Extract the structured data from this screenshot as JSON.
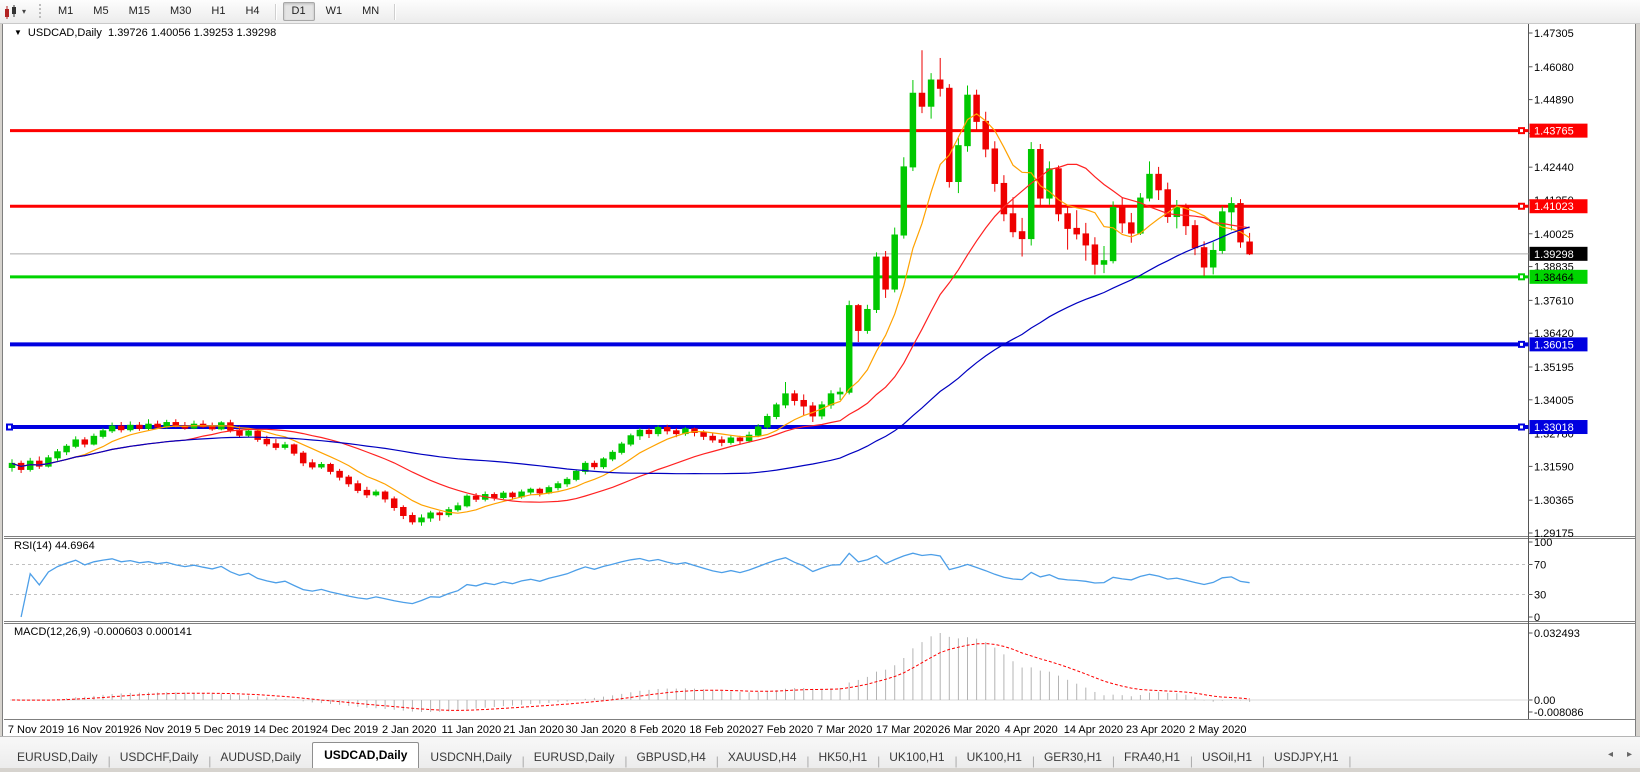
{
  "toolbar": {
    "chart_type_icon": "candlestick-chart-icon",
    "dropdown_caret": "▾",
    "timeframes": [
      {
        "label": "M1",
        "active": false
      },
      {
        "label": "M5",
        "active": false
      },
      {
        "label": "M15",
        "active": false
      },
      {
        "label": "M30",
        "active": false
      },
      {
        "label": "H1",
        "active": false
      },
      {
        "label": "H4",
        "active": false
      },
      {
        "label": "D1",
        "active": true
      },
      {
        "label": "W1",
        "active": false
      },
      {
        "label": "MN",
        "active": false
      }
    ]
  },
  "chart": {
    "title_symbol": "USDCAD,Daily",
    "title_ohlc": "1.39726 1.40056 1.39253 1.39298",
    "dropdown_glyph": "▼"
  },
  "rsi_panel": {
    "label": "RSI(14) 44.6964"
  },
  "macd_panel": {
    "label": "MACD(12,26,9) -0.000603 0.000141"
  },
  "tabs": {
    "items": [
      {
        "label": "EURUSD,Daily",
        "active": false
      },
      {
        "label": "USDCHF,Daily",
        "active": false
      },
      {
        "label": "AUDUSD,Daily",
        "active": false
      },
      {
        "label": "USDCAD,Daily",
        "active": true
      },
      {
        "label": "USDCNH,Daily",
        "active": false
      },
      {
        "label": "EURUSD,Daily",
        "active": false
      },
      {
        "label": "GBPUSD,H4",
        "active": false
      },
      {
        "label": "XAUUSD,H4",
        "active": false
      },
      {
        "label": "HK50,H1",
        "active": false
      },
      {
        "label": "UK100,H1",
        "active": false
      },
      {
        "label": "UK100,H1",
        "active": false
      },
      {
        "label": "GER30,H1",
        "active": false
      },
      {
        "label": "FRA40,H1",
        "active": false
      },
      {
        "label": "USOil,H1",
        "active": false
      },
      {
        "label": "USDJPY,H1",
        "active": false
      }
    ],
    "scroll_left": "◂",
    "scroll_right": "▸"
  },
  "chart_data": {
    "type": "candlestick+indicators",
    "symbol": "USDCAD",
    "timeframe": "Daily",
    "current_bar": {
      "open": 1.39726,
      "high": 1.40056,
      "low": 1.39253,
      "close": 1.39298
    },
    "price_axis": {
      "top": 1.47305,
      "bottom": 1.29175,
      "ticks": [
        "1.47305",
        "1.46080",
        "1.44890",
        "1.43665",
        "1.42440",
        "1.41250",
        "1.40025",
        "1.38835",
        "1.37610",
        "1.36420",
        "1.35195",
        "1.34005",
        "1.32780",
        "1.31590",
        "1.30365",
        "1.29175"
      ]
    },
    "x_labels": [
      "7 Nov 2019",
      "16 Nov 2019",
      "26 Nov 2019",
      "5 Dec 2019",
      "14 Dec 2019",
      "24 Dec 2019",
      "2 Jan 2020",
      "11 Jan 2020",
      "21 Jan 2020",
      "30 Jan 2020",
      "8 Feb 2020",
      "18 Feb 2020",
      "27 Feb 2020",
      "7 Mar 2020",
      "17 Mar 2020",
      "26 Mar 2020",
      "4 Apr 2020",
      "14 Apr 2020",
      "23 Apr 2020",
      "2 May 2020"
    ],
    "hlines": [
      {
        "price": 1.43765,
        "label": "1.43765",
        "color": "#fe0000",
        "text_color": "#ffffff",
        "width": 3
      },
      {
        "price": 1.41023,
        "label": "1.41023",
        "color": "#fe0000",
        "text_color": "#ffffff",
        "width": 3
      },
      {
        "price": 1.38464,
        "label": "1.38464",
        "color": "#00d400",
        "text_color": "#000000",
        "width": 3
      },
      {
        "price": 1.36015,
        "label": "1.36015",
        "color": "#0000e0",
        "text_color": "#ffffff",
        "width": 4
      },
      {
        "price": 1.33018,
        "label": "1.33018",
        "color": "#0000e0",
        "text_color": "#ffffff",
        "width": 4
      }
    ],
    "current_price_line": {
      "price": 1.39298,
      "label": "1.39298",
      "color": "#aaaaaa",
      "tag_bg": "#000000",
      "tag_text": "#ffffff"
    },
    "colors": {
      "bull": "#00c800",
      "bear": "#ee0000",
      "ma_fast": "#ffa200",
      "ma_mid": "#ff2222",
      "ma_slow": "#0000c0",
      "rsi": "#4d9fe8",
      "rsi_levels": "#c0c0c0",
      "macd_bar": "#b4b4b4",
      "macd_signal": "#ff0000",
      "axis_text": "#000000"
    },
    "moving_averages": [
      {
        "period": 8,
        "color_key": "ma_fast"
      },
      {
        "period": 20,
        "color_key": "ma_mid"
      },
      {
        "period": 50,
        "color_key": "ma_slow"
      }
    ],
    "rsi": {
      "period": 14,
      "current": 44.6964,
      "levels": [
        30,
        70
      ],
      "axis_labels": [
        "100",
        "70",
        "30",
        "0"
      ]
    },
    "macd": {
      "fast": 12,
      "slow": 26,
      "signal": 9,
      "current_main": -0.000603,
      "current_signal": 0.000141,
      "axis_labels": [
        "0.032493",
        "0.00",
        "-0.008086"
      ],
      "axis_max": 0.032493,
      "axis_min": -0.008086
    },
    "candles": [
      [
        1.3155,
        1.3185,
        1.314,
        1.317
      ],
      [
        1.317,
        1.318,
        1.3135,
        1.3148
      ],
      [
        1.3148,
        1.319,
        1.314,
        1.3178
      ],
      [
        1.3178,
        1.3195,
        1.315,
        1.316
      ],
      [
        1.316,
        1.32,
        1.3155,
        1.319
      ],
      [
        1.319,
        1.3222,
        1.318,
        1.3212
      ],
      [
        1.3212,
        1.324,
        1.32,
        1.3232
      ],
      [
        1.3232,
        1.3268,
        1.3225,
        1.3255
      ],
      [
        1.3255,
        1.3265,
        1.3228,
        1.324
      ],
      [
        1.324,
        1.3278,
        1.3235,
        1.3268
      ],
      [
        1.3268,
        1.3298,
        1.326,
        1.3288
      ],
      [
        1.3288,
        1.3318,
        1.328,
        1.3305
      ],
      [
        1.3305,
        1.332,
        1.3282,
        1.3292
      ],
      [
        1.3292,
        1.3322,
        1.3285,
        1.3308
      ],
      [
        1.3308,
        1.332,
        1.3288,
        1.3297
      ],
      [
        1.3297,
        1.333,
        1.329,
        1.3312
      ],
      [
        1.3312,
        1.3325,
        1.3295,
        1.3302
      ],
      [
        1.3302,
        1.3328,
        1.3296,
        1.3318
      ],
      [
        1.3318,
        1.333,
        1.33,
        1.3306
      ],
      [
        1.3306,
        1.332,
        1.3292,
        1.3298
      ],
      [
        1.3298,
        1.3325,
        1.3294,
        1.3312
      ],
      [
        1.3312,
        1.3326,
        1.3298,
        1.3303
      ],
      [
        1.3303,
        1.3318,
        1.3288,
        1.3295
      ],
      [
        1.3295,
        1.3323,
        1.329,
        1.3317
      ],
      [
        1.3317,
        1.3328,
        1.3282,
        1.3291
      ],
      [
        1.3291,
        1.3305,
        1.3262,
        1.3272
      ],
      [
        1.3272,
        1.3295,
        1.3265,
        1.3287
      ],
      [
        1.3287,
        1.3292,
        1.3248,
        1.3257
      ],
      [
        1.3257,
        1.327,
        1.3232,
        1.3241
      ],
      [
        1.3241,
        1.3258,
        1.3218,
        1.3228
      ],
      [
        1.3228,
        1.3248,
        1.322,
        1.3237
      ],
      [
        1.3237,
        1.3242,
        1.3198,
        1.3207
      ],
      [
        1.3207,
        1.3215,
        1.316,
        1.3172
      ],
      [
        1.3172,
        1.3185,
        1.3148,
        1.3157
      ],
      [
        1.3157,
        1.3175,
        1.315,
        1.3166
      ],
      [
        1.3166,
        1.3172,
        1.313,
        1.3141
      ],
      [
        1.3141,
        1.315,
        1.3108,
        1.312
      ],
      [
        1.312,
        1.3128,
        1.3085,
        1.3096
      ],
      [
        1.3096,
        1.3108,
        1.3062,
        1.3072
      ],
      [
        1.3072,
        1.3085,
        1.3045,
        1.3056
      ],
      [
        1.3056,
        1.3075,
        1.305,
        1.3066
      ],
      [
        1.3066,
        1.3072,
        1.3028,
        1.3041
      ],
      [
        1.3041,
        1.305,
        1.2998,
        1.301
      ],
      [
        1.301,
        1.3018,
        1.2968,
        1.2981
      ],
      [
        1.2981,
        1.2992,
        1.2948,
        1.2958
      ],
      [
        1.2958,
        1.2985,
        1.2944,
        1.2972
      ],
      [
        1.2972,
        1.2998,
        1.2958,
        1.299
      ],
      [
        1.299,
        1.2996,
        1.2962,
        1.2984
      ],
      [
        1.2984,
        1.3012,
        1.2975,
        1.3002
      ],
      [
        1.3002,
        1.3028,
        1.2995,
        1.3016
      ],
      [
        1.3016,
        1.3058,
        1.301,
        1.3051
      ],
      [
        1.3051,
        1.3062,
        1.303,
        1.304
      ],
      [
        1.304,
        1.3068,
        1.3032,
        1.3057
      ],
      [
        1.3057,
        1.3065,
        1.3035,
        1.3046
      ],
      [
        1.3046,
        1.307,
        1.304,
        1.3062
      ],
      [
        1.3062,
        1.3068,
        1.3038,
        1.3049
      ],
      [
        1.3049,
        1.3075,
        1.3042,
        1.3066
      ],
      [
        1.3066,
        1.3082,
        1.3055,
        1.3076
      ],
      [
        1.3076,
        1.3082,
        1.305,
        1.3063
      ],
      [
        1.3063,
        1.309,
        1.3058,
        1.3082
      ],
      [
        1.3082,
        1.3105,
        1.3072,
        1.3096
      ],
      [
        1.3096,
        1.312,
        1.3085,
        1.3112
      ],
      [
        1.3112,
        1.3148,
        1.3105,
        1.3141
      ],
      [
        1.3141,
        1.3178,
        1.313,
        1.317
      ],
      [
        1.317,
        1.318,
        1.3148,
        1.3158
      ],
      [
        1.3158,
        1.3192,
        1.315,
        1.3186
      ],
      [
        1.3186,
        1.3218,
        1.3178,
        1.321
      ],
      [
        1.321,
        1.3248,
        1.3202,
        1.324
      ],
      [
        1.324,
        1.3278,
        1.3232,
        1.327
      ],
      [
        1.327,
        1.3298,
        1.3255,
        1.329
      ],
      [
        1.329,
        1.3298,
        1.3262,
        1.3278
      ],
      [
        1.3278,
        1.3308,
        1.3268,
        1.33
      ],
      [
        1.33,
        1.331,
        1.3275,
        1.3288
      ],
      [
        1.3288,
        1.3298,
        1.3265,
        1.3278
      ],
      [
        1.3278,
        1.3302,
        1.327,
        1.3295
      ],
      [
        1.3295,
        1.33,
        1.3268,
        1.3282
      ],
      [
        1.3282,
        1.329,
        1.3255,
        1.3268
      ],
      [
        1.3268,
        1.328,
        1.3245,
        1.3255
      ],
      [
        1.3255,
        1.3268,
        1.3232,
        1.3246
      ],
      [
        1.3246,
        1.3272,
        1.3238,
        1.3262
      ],
      [
        1.3262,
        1.327,
        1.324,
        1.3252
      ],
      [
        1.3252,
        1.3285,
        1.3245,
        1.3272
      ],
      [
        1.3272,
        1.3312,
        1.3265,
        1.3302
      ],
      [
        1.3302,
        1.335,
        1.3295,
        1.334
      ],
      [
        1.334,
        1.339,
        1.333,
        1.3382
      ],
      [
        1.3382,
        1.3465,
        1.337,
        1.3422
      ],
      [
        1.3422,
        1.3435,
        1.338,
        1.3398
      ],
      [
        1.3398,
        1.342,
        1.3345,
        1.3378
      ],
      [
        1.3378,
        1.3392,
        1.332,
        1.3342
      ],
      [
        1.3342,
        1.3395,
        1.333,
        1.3382
      ],
      [
        1.3382,
        1.3435,
        1.3368,
        1.3422
      ],
      [
        1.3422,
        1.3445,
        1.34,
        1.3428
      ],
      [
        1.3428,
        1.376,
        1.342,
        1.3742
      ],
      [
        1.3742,
        1.3748,
        1.361,
        1.3652
      ],
      [
        1.3652,
        1.3745,
        1.364,
        1.3728
      ],
      [
        1.3728,
        1.3935,
        1.3715,
        1.3918
      ],
      [
        1.3918,
        1.394,
        1.377,
        1.3802
      ],
      [
        1.3802,
        1.4025,
        1.379,
        1.3998
      ],
      [
        1.3998,
        1.428,
        1.3985,
        1.4245
      ],
      [
        1.4245,
        1.456,
        1.423,
        1.4512
      ],
      [
        1.4512,
        1.4668,
        1.444,
        1.4465
      ],
      [
        1.4465,
        1.4585,
        1.442,
        1.456
      ],
      [
        1.456,
        1.464,
        1.45,
        1.453
      ],
      [
        1.453,
        1.4545,
        1.417,
        1.4192
      ],
      [
        1.4192,
        1.435,
        1.415,
        1.4322
      ],
      [
        1.4322,
        1.454,
        1.43,
        1.4505
      ],
      [
        1.4505,
        1.4525,
        1.438,
        1.441
      ],
      [
        1.441,
        1.4445,
        1.428,
        1.431
      ],
      [
        1.431,
        1.4338,
        1.4155,
        1.4185
      ],
      [
        1.4185,
        1.4215,
        1.4048,
        1.4075
      ],
      [
        1.4075,
        1.4135,
        1.399,
        1.401
      ],
      [
        1.401,
        1.406,
        1.392,
        1.3985
      ],
      [
        1.3985,
        1.4335,
        1.396,
        1.4308
      ],
      [
        1.4308,
        1.4328,
        1.4105,
        1.4132
      ],
      [
        1.4132,
        1.4265,
        1.4108,
        1.4238
      ],
      [
        1.4238,
        1.425,
        1.4048,
        1.4075
      ],
      [
        1.4075,
        1.4098,
        1.3945,
        1.4022
      ],
      [
        1.4022,
        1.4088,
        1.3982,
        1.4002
      ],
      [
        1.4002,
        1.4042,
        1.3905,
        1.3962
      ],
      [
        1.3962,
        1.399,
        1.3855,
        1.3892
      ],
      [
        1.3892,
        1.3958,
        1.386,
        1.3905
      ],
      [
        1.3905,
        1.412,
        1.3895,
        1.4098
      ],
      [
        1.4098,
        1.4135,
        1.4005,
        1.4042
      ],
      [
        1.4042,
        1.4078,
        1.397,
        1.4005
      ],
      [
        1.4005,
        1.415,
        1.3998,
        1.4132
      ],
      [
        1.4132,
        1.4265,
        1.412,
        1.4218
      ],
      [
        1.4218,
        1.4245,
        1.4125,
        1.4162
      ],
      [
        1.4162,
        1.4188,
        1.4042,
        1.4065
      ],
      [
        1.4065,
        1.4125,
        1.4022,
        1.4098
      ],
      [
        1.4098,
        1.4112,
        1.3998,
        1.4032
      ],
      [
        1.4032,
        1.4052,
        1.3925,
        1.3952
      ],
      [
        1.3952,
        1.3975,
        1.385,
        1.3882
      ],
      [
        1.3882,
        1.3972,
        1.3855,
        1.3942
      ],
      [
        1.3942,
        1.4102,
        1.393,
        1.4082
      ],
      [
        1.4082,
        1.4135,
        1.4015,
        1.4112
      ],
      [
        1.4112,
        1.4128,
        1.3952,
        1.3973
      ],
      [
        1.39726,
        1.40056,
        1.39253,
        1.39298
      ]
    ]
  }
}
